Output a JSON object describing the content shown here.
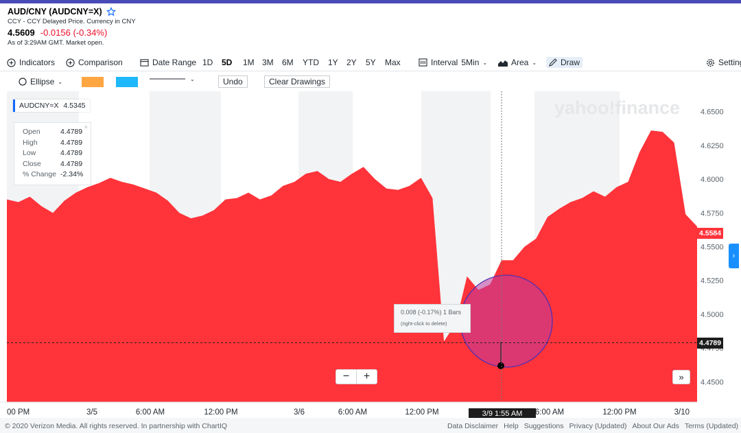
{
  "header": {
    "title": "AUD/CNY (AUDCNY=X)",
    "subtitle": "CCY - CCY Delayed Price. Currency in CNY",
    "price": "4.5609",
    "change": "-0.0156 (-0.34%)",
    "as_of": "As of 3:29AM GMT. Market open."
  },
  "toolbar": {
    "indicators": "Indicators",
    "comparison": "Comparison",
    "date_range": "Date Range",
    "ranges": [
      "1D",
      "5D",
      "1M",
      "3M",
      "6M",
      "YTD",
      "1Y",
      "2Y",
      "5Y",
      "Max"
    ],
    "active_range": "5D",
    "interval_label": "Interval",
    "interval_value": "5Min",
    "chart_type": "Area",
    "draw": "Draw",
    "settings": "Settings"
  },
  "drawbar": {
    "shape": "Ellipse",
    "color1": "#ffa643",
    "color2": "#1fb8fb",
    "undo": "Undo",
    "clear": "Clear Drawings"
  },
  "chart": {
    "watermark": "yahoo!finance",
    "ticker_label": "AUDCNY=X",
    "ticker_value": "4.5345",
    "ohlc": [
      {
        "k": "Open",
        "v": "4.4789"
      },
      {
        "k": "High",
        "v": "4.4789"
      },
      {
        "k": "Low",
        "v": "4.4789"
      },
      {
        "k": "Close",
        "v": "4.4789"
      },
      {
        "k": "% Change",
        "v": "-2.34%"
      }
    ],
    "ohlc_close": "×",
    "tooltip_line1": "0.008 (-0.17%) 1 Bars",
    "tooltip_line2": "(right-click to delete)",
    "current_price": "4.5584",
    "crosshair_price": "4.4789",
    "crosshair_date": "3/9 1:55 AM",
    "zoom_minus": "−",
    "zoom_plus": "+",
    "ff": "»",
    "side": "›"
  },
  "chart_data": {
    "type": "area",
    "ylim": [
      4.435,
      4.665
    ],
    "yticks": [
      "4.6500",
      "4.6250",
      "4.6000",
      "4.5750",
      "4.5500",
      "4.5250",
      "4.5000",
      "4.4750",
      "4.4500"
    ],
    "xticks": [
      "00 PM",
      "3/5",
      "6:00 AM",
      "12:00 PM",
      "3/6",
      "6:00 AM",
      "12:00 PM",
      "3/9",
      "6:00 AM",
      "12:00 PM",
      "3/10"
    ],
    "series": [
      {
        "color": "#ff333a",
        "values": [
          4.585,
          4.583,
          4.587,
          4.58,
          4.575,
          4.584,
          4.59,
          4.594,
          4.597,
          4.601,
          4.598,
          4.596,
          4.593,
          4.59,
          4.584,
          4.575,
          4.571,
          4.573,
          4.577,
          4.585,
          4.586,
          4.59,
          4.585,
          4.588,
          4.595,
          4.598,
          4.604,
          4.606,
          4.6,
          4.598,
          4.604,
          4.609,
          4.6,
          4.593,
          4.592,
          4.595,
          4.601,
          4.586,
          4.48,
          4.493,
          4.528,
          4.518,
          4.522,
          4.54,
          4.54,
          4.55,
          4.556,
          4.572,
          4.578,
          4.583,
          4.586,
          4.591,
          4.587,
          4.594,
          4.598,
          4.62,
          4.636,
          4.635,
          4.627,
          4.574,
          4.565
        ]
      }
    ]
  },
  "footer": {
    "copyright": "© 2020 Verizon Media. All rights reserved.  In partnership with ChartIQ",
    "links": [
      "Data Disclaimer",
      "Help",
      "Suggestions",
      "Privacy (Updated)",
      "About Our Ads",
      "Terms (Updated)"
    ]
  }
}
